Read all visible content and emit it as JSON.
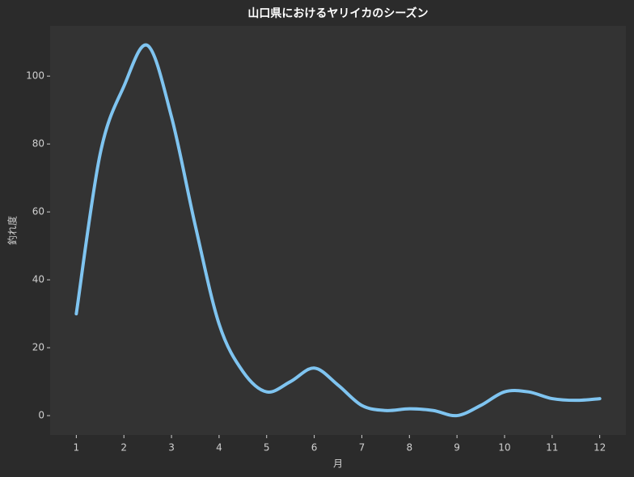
{
  "chart_data": {
    "type": "line",
    "title": "山口県におけるヤリイカのシーズン",
    "x_label": "月",
    "y_label": "釣れ度",
    "x": [
      1,
      1.5,
      2,
      2.5,
      3,
      3.5,
      4,
      4.5,
      5,
      5.5,
      6,
      6.5,
      7,
      7.5,
      8,
      8.5,
      9,
      9.5,
      10,
      10.5,
      11,
      11.5,
      12
    ],
    "series": [
      {
        "color": "#7fc4f0",
        "values": [
          30,
          77,
          97,
          109,
          88,
          56,
          27,
          13,
          7,
          10,
          14,
          9,
          3,
          1.5,
          2,
          1.5,
          0,
          3,
          7,
          7,
          5,
          4.5,
          5
        ]
      }
    ],
    "xlim": [
      0.45,
      12.55
    ],
    "ylim": [
      -5.7,
      114.8
    ],
    "xticks": [
      1,
      2,
      3,
      4,
      5,
      6,
      7,
      8,
      9,
      10,
      11,
      12
    ],
    "yticks": [
      0,
      20,
      40,
      60,
      80,
      100
    ],
    "grid": false
  }
}
